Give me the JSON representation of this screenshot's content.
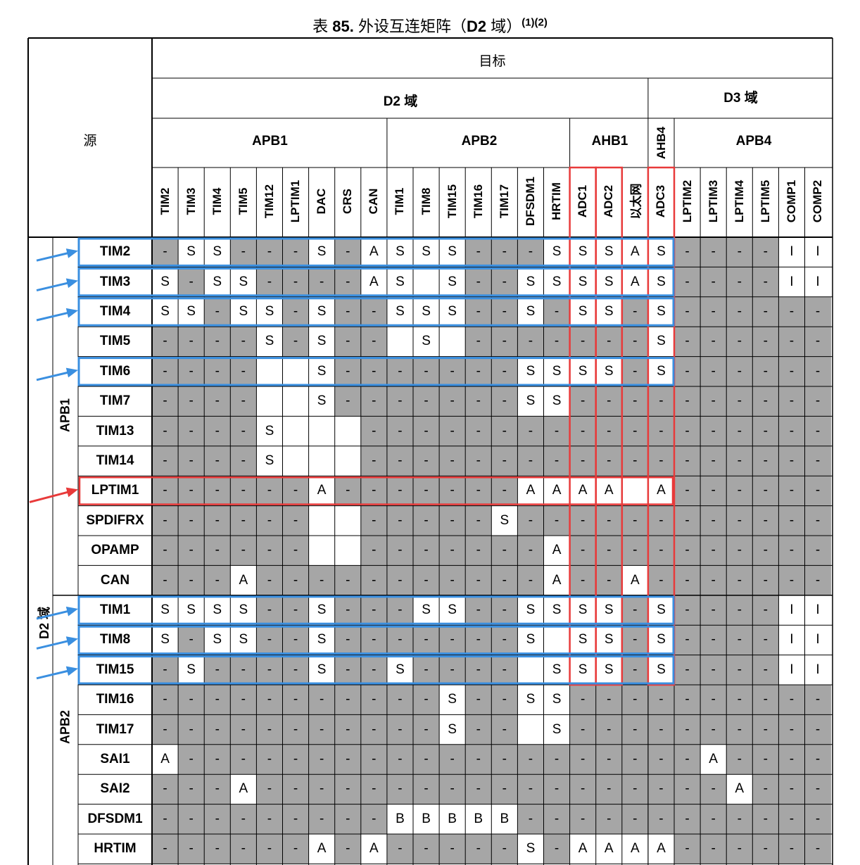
{
  "caption": {
    "prefix": "表",
    "number": "85.",
    "title": "外设互连矩阵（",
    "domain": "D2",
    "suffix": " 域）",
    "notes": "(1)(2)"
  },
  "headers": {
    "source": "源",
    "target": "目标",
    "d2_domain": "D2 域",
    "d3_domain": "D3 域",
    "apb1": "APB1",
    "apb2": "APB2",
    "ahb1": "AHB1",
    "ahb4": "AHB4",
    "apb4": "APB4"
  },
  "side_labels": {
    "domain": "D2 域",
    "apb1": "APB1",
    "apb2": "APB2"
  },
  "columns": [
    "TIM2",
    "TIM3",
    "TIM4",
    "TIM5",
    "TIM12",
    "LPTIM1",
    "DAC",
    "CRS",
    "CAN",
    "TIM1",
    "TIM8",
    "TIM15",
    "TIM16",
    "TIM17",
    "DFSDM1",
    "HRTIM",
    "ADC1",
    "ADC2",
    "以太网",
    "ADC3",
    "LPTIM2",
    "LPTIM3",
    "LPTIM4",
    "LPTIM5",
    "COMP1",
    "COMP2"
  ],
  "rows": [
    {
      "label": "TIM2",
      "cells": [
        "-",
        "S",
        "S",
        "-",
        "-",
        "-",
        "S",
        "-",
        "A",
        "S",
        "S",
        "S",
        "-",
        "-",
        "-",
        "S",
        "S",
        "S",
        "A",
        "S",
        "-",
        "-",
        "-",
        "-",
        "I",
        "I"
      ]
    },
    {
      "label": "TIM3",
      "cells": [
        "S",
        "-",
        "S",
        "S",
        "-",
        "-",
        "-",
        "-",
        "A",
        "S",
        "",
        "S",
        "-",
        "-",
        "S",
        "S",
        "S",
        "S",
        "A",
        "S",
        "-",
        "-",
        "-",
        "-",
        "I",
        "I"
      ]
    },
    {
      "label": "TIM4",
      "cells": [
        "S",
        "S",
        "-",
        "S",
        "S",
        "-",
        "S",
        "-",
        "-",
        "S",
        "S",
        "S",
        "-",
        "-",
        "S",
        "-",
        "S",
        "S",
        "-",
        "S",
        "-",
        "-",
        "-",
        "-",
        "-",
        "-"
      ]
    },
    {
      "label": "TIM5",
      "cells": [
        "-",
        "-",
        "-",
        "-",
        "S",
        "-",
        "S",
        "-",
        "-",
        "",
        "S",
        "",
        "-",
        "-",
        "-",
        "-",
        "-",
        "-",
        "-",
        "S",
        "-",
        "-",
        "-",
        "-",
        "-",
        "-"
      ]
    },
    {
      "label": "TIM6",
      "cells": [
        "-",
        "-",
        "-",
        "-",
        "",
        "",
        "S",
        "-",
        "-",
        "-",
        "-",
        "-",
        "-",
        "-",
        "S",
        "S",
        "S",
        "S",
        "-",
        "S",
        "-",
        "-",
        "-",
        "-",
        "-",
        "-"
      ]
    },
    {
      "label": "TIM7",
      "cells": [
        "-",
        "-",
        "-",
        "-",
        "",
        "",
        "S",
        "-",
        "-",
        "-",
        "-",
        "-",
        "-",
        "-",
        "S",
        "S",
        "-",
        "-",
        "-",
        "-",
        "-",
        "-",
        "-",
        "-",
        "-",
        "-"
      ]
    },
    {
      "label": "TIM13",
      "cells": [
        "-",
        "-",
        "-",
        "-",
        "S",
        "",
        "",
        "",
        "-",
        "-",
        "-",
        "-",
        "-",
        "-",
        "-",
        "-",
        "-",
        "-",
        "-",
        "-",
        "-",
        "-",
        "-",
        "-",
        "-",
        "-"
      ]
    },
    {
      "label": "TIM14",
      "cells": [
        "-",
        "-",
        "-",
        "-",
        "S",
        "",
        "",
        "",
        "-",
        "-",
        "-",
        "-",
        "-",
        "-",
        "-",
        "-",
        "-",
        "-",
        "-",
        "-",
        "-",
        "-",
        "-",
        "-",
        "-",
        "-"
      ]
    },
    {
      "label": "LPTIM1",
      "cells": [
        "-",
        "-",
        "-",
        "-",
        "-",
        "-",
        "A",
        "-",
        "-",
        "-",
        "-",
        "-",
        "-",
        "-",
        "A",
        "A",
        "A",
        "A",
        "",
        "A",
        "-",
        "-",
        "-",
        "-",
        "-",
        "-"
      ]
    },
    {
      "label": "SPDIFRX",
      "cells": [
        "-",
        "-",
        "-",
        "-",
        "-",
        "-",
        "",
        "",
        "-",
        "-",
        "-",
        "-",
        "-",
        "S",
        "-",
        "-",
        "-",
        "-",
        "-",
        "-",
        "-",
        "-",
        "-",
        "-",
        "-",
        "-"
      ]
    },
    {
      "label": "OPAMP",
      "cells": [
        "-",
        "-",
        "-",
        "-",
        "-",
        "-",
        "",
        "",
        "-",
        "-",
        "-",
        "-",
        "-",
        "-",
        "-",
        "A",
        "-",
        "-",
        "-",
        "-",
        "-",
        "-",
        "-",
        "-",
        "-",
        "-"
      ]
    },
    {
      "label": "CAN",
      "cells": [
        "-",
        "-",
        "-",
        "A",
        "-",
        "-",
        "-",
        "-",
        "-",
        "-",
        "-",
        "-",
        "-",
        "-",
        "-",
        "A",
        "-",
        "-",
        "A",
        "-",
        "-",
        "-",
        "-",
        "-",
        "-",
        "-"
      ]
    },
    {
      "label": "TIM1",
      "cells": [
        "S",
        "S",
        "S",
        "S",
        "-",
        "-",
        "S",
        "-",
        "-",
        "-",
        "S",
        "S",
        "-",
        "-",
        "S",
        "S",
        "S",
        "S",
        "-",
        "S",
        "-",
        "-",
        "-",
        "-",
        "I",
        "I"
      ]
    },
    {
      "label": "TIM8",
      "cells": [
        "S",
        "-",
        "S",
        "S",
        "-",
        "-",
        "S",
        "-",
        "-",
        "-",
        "-",
        "-",
        "-",
        "-",
        "S",
        "",
        "S",
        "S",
        "-",
        "S",
        "-",
        "-",
        "-",
        "-",
        "I",
        "I"
      ]
    },
    {
      "label": "TIM15",
      "cells": [
        "-",
        "S",
        "-",
        "-",
        "-",
        "-",
        "S",
        "-",
        "-",
        "S",
        "-",
        "-",
        "-",
        "-",
        "",
        "S",
        "S",
        "S",
        "-",
        "S",
        "-",
        "-",
        "-",
        "-",
        "I",
        "I"
      ]
    },
    {
      "label": "TIM16",
      "cells": [
        "-",
        "-",
        "-",
        "-",
        "-",
        "-",
        "-",
        "-",
        "-",
        "-",
        "-",
        "S",
        "-",
        "-",
        "S",
        "S",
        "-",
        "-",
        "-",
        "-",
        "-",
        "-",
        "-",
        "-",
        "-",
        "-"
      ]
    },
    {
      "label": "TIM17",
      "cells": [
        "-",
        "-",
        "-",
        "-",
        "-",
        "-",
        "-",
        "-",
        "-",
        "-",
        "-",
        "S",
        "-",
        "-",
        "",
        "S",
        "-",
        "-",
        "-",
        "-",
        "-",
        "-",
        "-",
        "-",
        "-",
        "-"
      ]
    },
    {
      "label": "SAI1",
      "cells": [
        "A",
        "-",
        "-",
        "-",
        "-",
        "-",
        "-",
        "-",
        "-",
        "-",
        "-",
        "-",
        "-",
        "-",
        "-",
        "-",
        "-",
        "-",
        "-",
        "-",
        "-",
        "A",
        "-",
        "-",
        "-",
        "-"
      ]
    },
    {
      "label": "SAI2",
      "cells": [
        "-",
        "-",
        "-",
        "A",
        "-",
        "-",
        "-",
        "-",
        "-",
        "-",
        "-",
        "-",
        "-",
        "-",
        "-",
        "-",
        "-",
        "-",
        "-",
        "-",
        "-",
        "-",
        "A",
        "-",
        "-",
        "-"
      ]
    },
    {
      "label": "DFSDM1",
      "cells": [
        "-",
        "-",
        "-",
        "-",
        "-",
        "-",
        "-",
        "-",
        "-",
        "B",
        "B",
        "B",
        "B",
        "B",
        "-",
        "-",
        "-",
        "-",
        "-",
        "-",
        "-",
        "-",
        "-",
        "-",
        "-",
        "-"
      ]
    },
    {
      "label": "HRTIM",
      "cells": [
        "-",
        "-",
        "-",
        "-",
        "-",
        "-",
        "A",
        "-",
        "A",
        "-",
        "-",
        "-",
        "-",
        "-",
        "S",
        "-",
        "A",
        "A",
        "A",
        "A",
        "-",
        "-",
        "-",
        "-",
        "-",
        "-"
      ]
    }
  ],
  "white_blank_cells": [
    [
      1,
      10
    ],
    [
      3,
      9
    ],
    [
      3,
      11
    ],
    [
      4,
      4
    ],
    [
      4,
      5
    ],
    [
      5,
      4
    ],
    [
      5,
      5
    ],
    [
      6,
      5
    ],
    [
      6,
      6
    ],
    [
      6,
      7
    ],
    [
      7,
      5
    ],
    [
      7,
      6
    ],
    [
      7,
      7
    ],
    [
      8,
      18
    ],
    [
      9,
      6
    ],
    [
      9,
      7
    ],
    [
      10,
      6
    ],
    [
      10,
      7
    ],
    [
      13,
      15
    ],
    [
      14,
      14
    ],
    [
      16,
      14
    ]
  ],
  "highlight_colors": {
    "blue": "#3a8fe0",
    "red": "#e83a3a",
    "arrow_blue": "#3a8fe0",
    "arrow_red": "#e83a3a"
  }
}
